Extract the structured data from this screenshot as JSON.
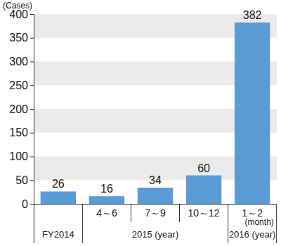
{
  "chart_data": {
    "type": "bar",
    "y_label": "(Cases)",
    "categories": [
      null,
      "4～6",
      "7～9",
      "10～12",
      "1～2 (month)"
    ],
    "values": [
      26,
      16,
      34,
      60,
      382
    ],
    "color": "#5b9bd5",
    "ylim": [
      0,
      400
    ],
    "yticks": [
      0,
      50,
      100,
      150,
      200,
      250,
      300,
      350,
      400
    ],
    "grid": true,
    "data_labels": true,
    "x_groups": [
      {
        "label": "FY2014",
        "count": 1
      },
      {
        "label": "2015 (year)",
        "count": 3
      },
      {
        "label": "2016 (year)",
        "count": 1
      }
    ]
  }
}
